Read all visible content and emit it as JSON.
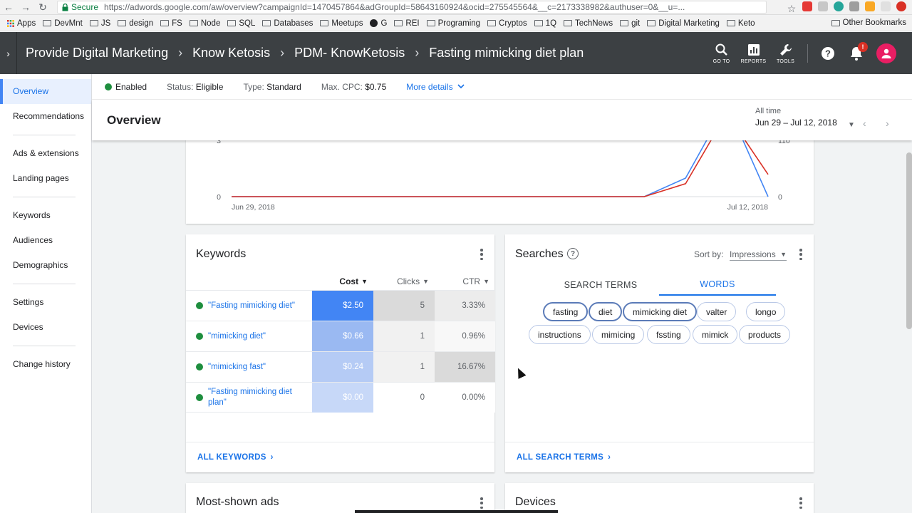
{
  "browser": {
    "secure_label": "Secure",
    "url": "https://adwords.google.com/aw/overview?campaignId=1470457864&adGroupId=58643160924&ocid=275545564&__c=2173338982&authuser=0&__u=...",
    "bookmarks": [
      "Apps",
      "DevMnt",
      "JS",
      "design",
      "FS",
      "Node",
      "SQL",
      "Databases",
      "Meetups",
      "G",
      "REI",
      "Programing",
      "Cryptos",
      "1Q",
      "TechNews",
      "git",
      "Digital Marketing",
      "Keto"
    ],
    "other_bookmarks": "Other Bookmarks"
  },
  "header": {
    "breadcrumbs": [
      "Provide Digital Marketing",
      "Know Ketosis",
      "PDM- KnowKetosis",
      "Fasting mimicking diet plan"
    ],
    "tools": {
      "goto": "GO TO",
      "reports": "REPORTS",
      "tools": "TOOLS"
    },
    "notification_badge": "!"
  },
  "sidebar": {
    "items": [
      "Overview",
      "Recommendations",
      "Ads & extensions",
      "Landing pages",
      "Keywords",
      "Audiences",
      "Demographics",
      "Settings",
      "Devices",
      "Change history"
    ]
  },
  "status": {
    "enabled": "Enabled",
    "status_label": "Status:",
    "status_value": "Eligible",
    "type_label": "Type:",
    "type_value": "Standard",
    "cpc_label": "Max. CPC:",
    "cpc_value": "$0.75",
    "more_details": "More details"
  },
  "overview": {
    "title": "Overview",
    "range_label": "All time",
    "range_value": "Jun 29 – Jul 12, 2018"
  },
  "chart_data": {
    "type": "line",
    "x_labels": [
      "Jun 29, 2018",
      "Jul 12, 2018"
    ],
    "left_ticks": [
      "3",
      "0"
    ],
    "right_ticks": [
      "110",
      "0"
    ],
    "x": [
      "Jun 29",
      "Jun 30",
      "Jul 1",
      "Jul 2",
      "Jul 3",
      "Jul 4",
      "Jul 5",
      "Jul 6",
      "Jul 7",
      "Jul 8",
      "Jul 9",
      "Jul 10",
      "Jul 11",
      "Jul 12"
    ],
    "series": [
      {
        "color": "#4285f4",
        "values": [
          0,
          0,
          0,
          0,
          0,
          0,
          0,
          0,
          0,
          0,
          0,
          1,
          5,
          0
        ]
      },
      {
        "color": "#d93025",
        "values": [
          0,
          0,
          0,
          0,
          0,
          0,
          0,
          0,
          0,
          0,
          0,
          0.7,
          4.5,
          1.2
        ]
      }
    ],
    "ylim": [
      0,
      3
    ]
  },
  "keywords": {
    "title": "Keywords",
    "headers": {
      "cost": "Cost",
      "clicks": "Clicks",
      "ctr": "CTR"
    },
    "rows": [
      {
        "keyword": "\"Fasting mimicking diet\"",
        "cost": "$2.50",
        "clicks": "5",
        "ctr": "3.33%",
        "cost_bg": "#4285f4",
        "clicks_bg": "#dadada",
        "ctr_bg": "#ececec"
      },
      {
        "keyword": "\"mimicking diet\"",
        "cost": "$0.66",
        "clicks": "1",
        "ctr": "0.96%",
        "cost_bg": "#9ab9f2",
        "clicks_bg": "#f1f1f1",
        "ctr_bg": "#f8f8f8"
      },
      {
        "keyword": "\"mimicking fast\"",
        "cost": "$0.24",
        "clicks": "1",
        "ctr": "16.67%",
        "cost_bg": "#b5cbf5",
        "clicks_bg": "#f1f1f1",
        "ctr_bg": "#dadada"
      },
      {
        "keyword": "\"Fasting mimicking diet plan\"",
        "cost": "$0.00",
        "clicks": "0",
        "ctr": "0.00%",
        "cost_bg": "#c7d8f8",
        "clicks_bg": "#ffffff",
        "ctr_bg": "#ffffff"
      }
    ],
    "footer": "ALL KEYWORDS"
  },
  "searches": {
    "title": "Searches",
    "sort_label": "Sort by:",
    "sort_value": "Impressions",
    "tabs": [
      "SEARCH TERMS",
      "WORDS"
    ],
    "words": [
      "fasting",
      "diet",
      "mimicking diet",
      "valter",
      "longo",
      "instructions",
      "mimicing",
      "fssting",
      "mimick",
      "products"
    ],
    "footer": "ALL SEARCH TERMS"
  },
  "bottom_cards": {
    "ads": "Most-shown ads",
    "devices": "Devices"
  }
}
